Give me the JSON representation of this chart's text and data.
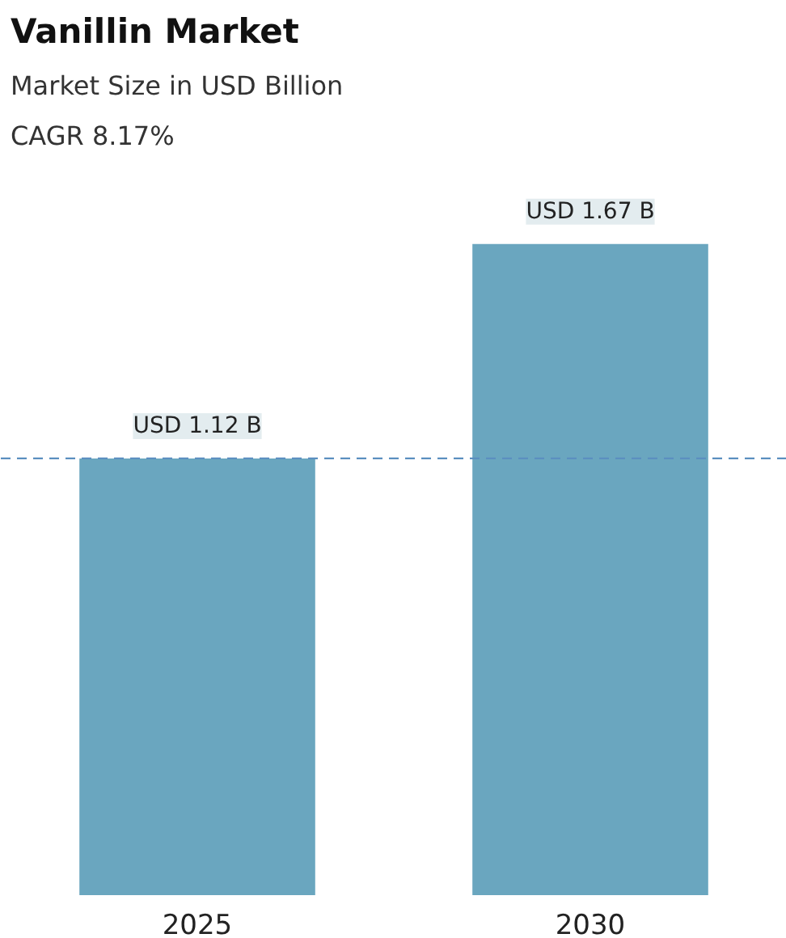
{
  "chart_data": {
    "type": "bar",
    "title": "Vanillin Market",
    "subtitle": "Market Size in USD Billion",
    "annotations": [
      "CAGR 8.17%"
    ],
    "categories": [
      "2025",
      "2030"
    ],
    "values": [
      1.12,
      1.67
    ],
    "color": "#6aa6bf",
    "value_labels": [
      "USD 1.12 B",
      "USD 1.67 B"
    ],
    "ref_lines": [
      {
        "axis": "y",
        "value": 1.12,
        "color": "#5b8fc0",
        "line_style": "dashed"
      }
    ],
    "grid": false
  }
}
